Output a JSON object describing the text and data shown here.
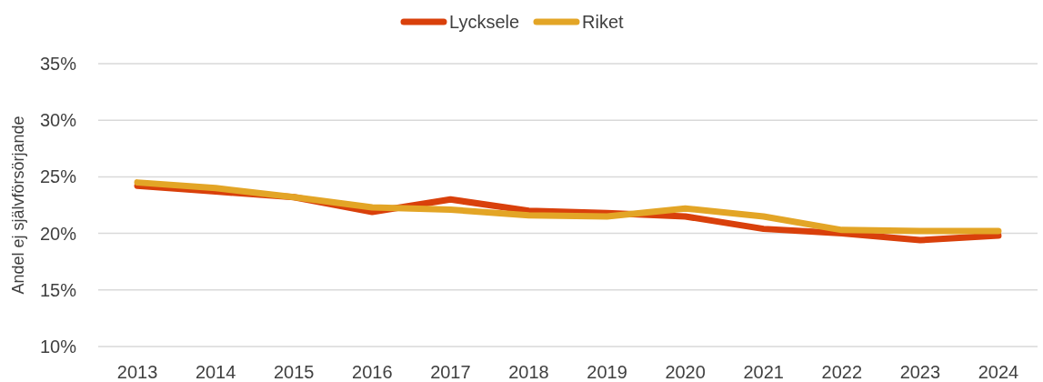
{
  "chart_data": {
    "type": "line",
    "ylabel": "Andel ej självförsörjande",
    "categories": [
      "2013",
      "2014",
      "2015",
      "2016",
      "2017",
      "2018",
      "2019",
      "2020",
      "2021",
      "2022",
      "2023",
      "2024"
    ],
    "series": [
      {
        "name": "Lycksele",
        "color": "#d9400b",
        "values": [
          24.2,
          23.7,
          23.2,
          21.9,
          23.0,
          22.0,
          21.8,
          21.5,
          20.4,
          20.0,
          19.4,
          19.8
        ]
      },
      {
        "name": "Riket",
        "color": "#e3a526",
        "values": [
          24.5,
          24.0,
          23.2,
          22.3,
          22.1,
          21.6,
          21.5,
          22.2,
          21.5,
          20.3,
          20.2,
          20.2
        ]
      }
    ],
    "ylim": [
      10,
      35
    ],
    "yticks": [
      {
        "value": 10,
        "label": "10%"
      },
      {
        "value": 15,
        "label": "15%"
      },
      {
        "value": 20,
        "label": "20%"
      },
      {
        "value": 25,
        "label": "25%"
      },
      {
        "value": 30,
        "label": "30%"
      },
      {
        "value": 35,
        "label": "35%"
      }
    ],
    "grid": "y",
    "legend": "top",
    "marker": "none",
    "line_style": "solid"
  }
}
